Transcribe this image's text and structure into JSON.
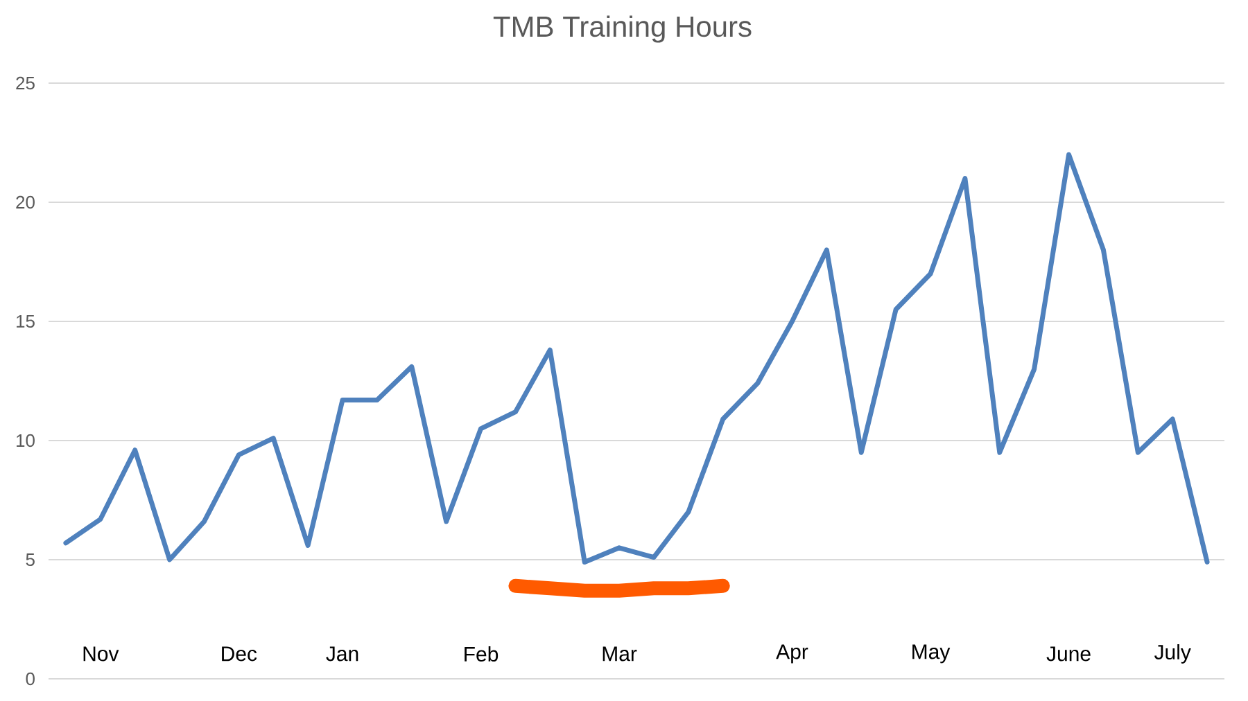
{
  "chart_data": {
    "type": "line",
    "title": "TMB Training Hours",
    "categories": [
      null,
      "Nov",
      null,
      null,
      null,
      "Dec",
      null,
      null,
      "Jan",
      null,
      null,
      null,
      "Feb",
      null,
      null,
      null,
      "Mar",
      null,
      null,
      null,
      null,
      "Apr",
      null,
      null,
      null,
      "May",
      null,
      null,
      null,
      "June",
      null,
      null,
      "July",
      null
    ],
    "series": [
      {
        "color": "#4f81bd",
        "values": [
          5.7,
          6.7,
          9.6,
          5.0,
          6.6,
          9.4,
          10.1,
          5.6,
          11.7,
          11.7,
          13.1,
          6.6,
          10.5,
          11.2,
          13.8,
          4.9,
          5.5,
          5.1,
          7.0,
          10.9,
          12.4,
          15.0,
          18.0,
          9.5,
          15.5,
          17.0,
          21.0,
          9.5,
          13.0,
          22.0,
          18.0,
          9.5,
          10.9,
          4.9
        ]
      },
      {
        "color": "#ff5a00",
        "values": [
          null,
          null,
          null,
          null,
          null,
          null,
          null,
          null,
          null,
          null,
          null,
          null,
          null,
          3.9,
          3.8,
          3.7,
          3.7,
          3.8,
          3.8,
          3.9,
          null,
          null,
          null,
          null,
          null,
          null,
          null,
          null,
          null,
          null,
          null,
          null,
          null,
          null
        ]
      }
    ],
    "ylim": [
      0,
      25
    ],
    "yticks": [
      0,
      5,
      10,
      15,
      20,
      25
    ],
    "grid": "y",
    "marker": "none",
    "line_style": "solid"
  }
}
